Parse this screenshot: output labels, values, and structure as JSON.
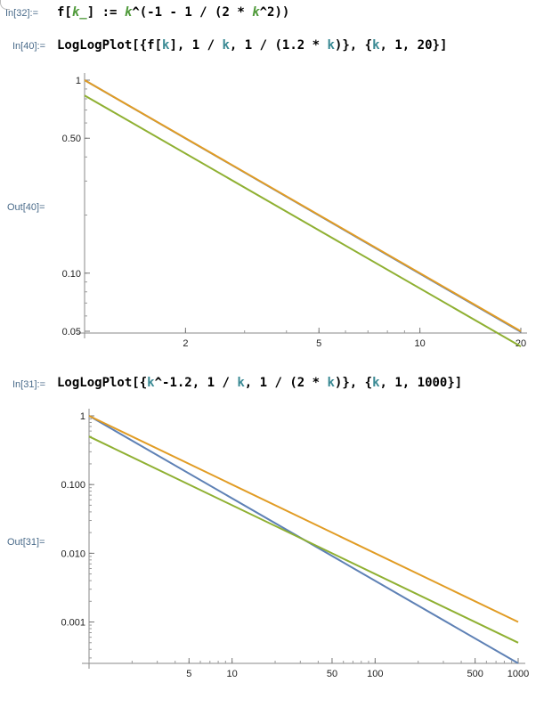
{
  "cells": [
    {
      "in_label": "In[32]:=",
      "code": [
        {
          "t": "sym",
          "v": "f["
        },
        {
          "t": "pat",
          "v": "k_"
        },
        {
          "t": "sym",
          "v": "] := "
        },
        {
          "t": "pat",
          "v": "k"
        },
        {
          "t": "sym",
          "v": "^(-1 - 1 / (2 * "
        },
        {
          "t": "pat",
          "v": "k"
        },
        {
          "t": "sym",
          "v": "^2))"
        }
      ]
    },
    {
      "in_label": "In[40]:=",
      "out_label": "Out[40]=",
      "code": [
        {
          "t": "sym",
          "v": "LogLogPlot[{f["
        },
        {
          "t": "var",
          "v": "k"
        },
        {
          "t": "sym",
          "v": "], 1 / "
        },
        {
          "t": "var",
          "v": "k"
        },
        {
          "t": "sym",
          "v": ", 1 / (1.2 * "
        },
        {
          "t": "var",
          "v": "k"
        },
        {
          "t": "sym",
          "v": ")}, {"
        },
        {
          "t": "var",
          "v": "k"
        },
        {
          "t": "sym",
          "v": ", 1, 20}]"
        }
      ]
    },
    {
      "in_label": "In[31]:=",
      "out_label": "Out[31]=",
      "code": [
        {
          "t": "sym",
          "v": "LogLogPlot[{"
        },
        {
          "t": "var",
          "v": "k"
        },
        {
          "t": "sym",
          "v": "^-1.2, 1 / "
        },
        {
          "t": "var",
          "v": "k"
        },
        {
          "t": "sym",
          "v": ", 1 / (2 * "
        },
        {
          "t": "var",
          "v": "k"
        },
        {
          "t": "sym",
          "v": ")}, {"
        },
        {
          "t": "var",
          "v": "k"
        },
        {
          "t": "sym",
          "v": ", 1, 1000}]"
        }
      ]
    }
  ],
  "chart_data": [
    {
      "type": "line",
      "scale": "log-log",
      "xlim": [
        1,
        20
      ],
      "ylim": [
        0.05,
        1
      ],
      "x_ticks": [
        2,
        5,
        10,
        20
      ],
      "x_tick_labels": [
        "2",
        "5",
        "10",
        "20"
      ],
      "y_ticks": [
        1,
        0.5,
        0.1,
        0.05
      ],
      "y_tick_labels": [
        "1",
        "0.50",
        "0.10",
        "0.05"
      ],
      "series": [
        {
          "formula": "f[k]",
          "color": "#5e81b5",
          "x": [
            1,
            20
          ],
          "y": [
            1,
            0.0496
          ]
        },
        {
          "formula": "1/k",
          "color": "#e19c24",
          "x": [
            1,
            20
          ],
          "y": [
            1,
            0.05
          ]
        },
        {
          "formula": "1/(1.2*k)",
          "color": "#8fb032",
          "x": [
            1,
            20
          ],
          "y": [
            0.8333,
            0.0417
          ]
        }
      ],
      "grid": false
    },
    {
      "type": "line",
      "scale": "log-log",
      "xlim": [
        1,
        1000
      ],
      "ylim": [
        0.00025,
        1
      ],
      "x_ticks": [
        5,
        10,
        50,
        100,
        500,
        1000
      ],
      "x_tick_labels": [
        "5",
        "10",
        "50",
        "100",
        "500",
        "1000"
      ],
      "y_ticks": [
        1,
        0.1,
        0.01,
        0.001
      ],
      "y_tick_labels": [
        "1",
        "0.100",
        "0.010",
        "0.001"
      ],
      "series": [
        {
          "formula": "k^-1.2",
          "color": "#5e81b5",
          "x": [
            1,
            1000
          ],
          "y": [
            1,
            0.000251
          ]
        },
        {
          "formula": "1/k",
          "color": "#e19c24",
          "x": [
            1,
            1000
          ],
          "y": [
            1,
            0.001
          ]
        },
        {
          "formula": "1/(2*k)",
          "color": "#8fb032",
          "x": [
            1,
            1000
          ],
          "y": [
            0.5,
            0.0005
          ]
        }
      ],
      "grid": false
    }
  ]
}
